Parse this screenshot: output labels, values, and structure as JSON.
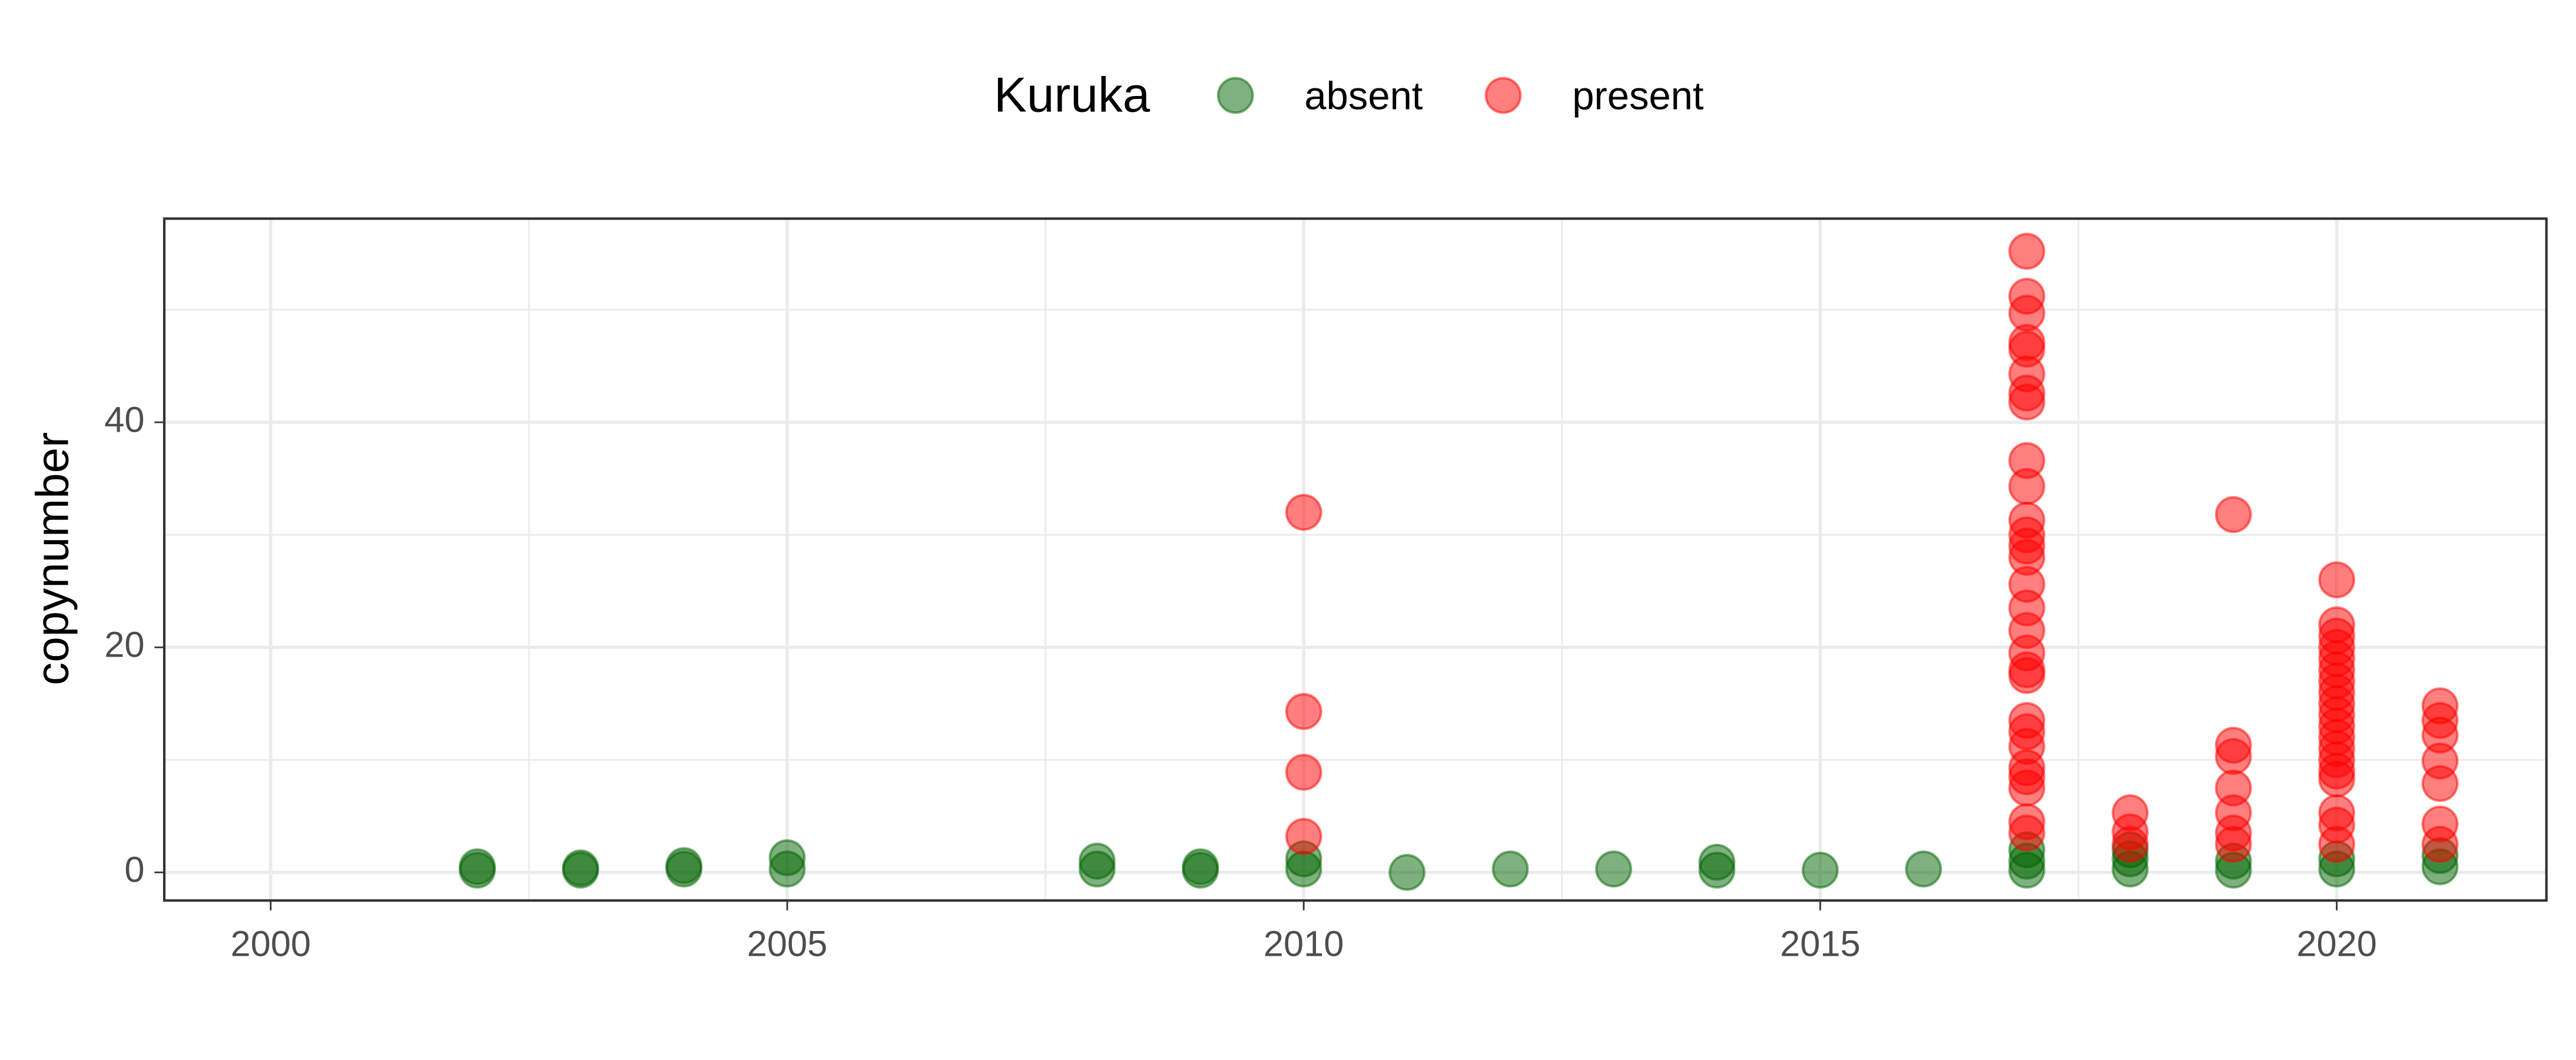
{
  "chart_data": {
    "type": "scatter",
    "ylabel": "copynumber",
    "legend_title": "Kuruka",
    "legend_position": "top",
    "grid": true,
    "minor_grid": true,
    "xlim": [
      1998.97,
      2022.03
    ],
    "xticks": [
      2000,
      2005,
      2010,
      2015,
      2020
    ],
    "ylim": [
      -2.5,
      58.1
    ],
    "yticks": [
      0,
      20,
      40
    ],
    "series": [
      {
        "name": "absent",
        "color": "#006400",
        "x": [
          2002,
          2002,
          2003,
          2003,
          2004,
          2004,
          2005,
          2005,
          2008,
          2008,
          2009,
          2009,
          2010,
          2010,
          2011,
          2012,
          2013,
          2014,
          2014,
          2015,
          2016,
          2017,
          2017,
          2017,
          2018,
          2018,
          2018,
          2019,
          2019,
          2020,
          2020,
          2021,
          2021
        ],
        "values": [
          0.2,
          0.5,
          0.2,
          0.4,
          0.3,
          0.6,
          0.3,
          1.3,
          0.3,
          1.0,
          0.2,
          0.5,
          0.3,
          1.2,
          0,
          0.3,
          0.3,
          0.2,
          0.9,
          0.2,
          0.3,
          0.2,
          1,
          2,
          0.3,
          1.2,
          2,
          0.2,
          1,
          0.3,
          1.2,
          0.5,
          1.5
        ]
      },
      {
        "name": "present",
        "color": "#ff0000",
        "x": [
          2010,
          2010,
          2010,
          2010,
          2017,
          2017,
          2017,
          2017,
          2017,
          2017,
          2017,
          2017,
          2017,
          2017,
          2017,
          2017,
          2017,
          2017,
          2017,
          2017,
          2017,
          2017,
          2017,
          2017,
          2017,
          2017,
          2017,
          2017,
          2017,
          2017,
          2017,
          2017,
          2018,
          2018,
          2018,
          2019,
          2019,
          2019,
          2019,
          2019,
          2019,
          2019,
          2020,
          2020,
          2020,
          2020,
          2020,
          2020,
          2020,
          2020,
          2020,
          2020,
          2020,
          2020,
          2020,
          2020,
          2020,
          2020,
          2020,
          2020,
          2020,
          2021,
          2021,
          2021,
          2021,
          2021,
          2021,
          2021
        ],
        "values": [
          32,
          14.3,
          8.9,
          3.2,
          55.2,
          51.2,
          49.7,
          47.1,
          46.5,
          44.3,
          42.6,
          41.8,
          36.6,
          34.3,
          31.3,
          30,
          29,
          28,
          25.6,
          23.5,
          21.5,
          19.5,
          18,
          17.5,
          13.5,
          12.5,
          11.2,
          9.3,
          8.5,
          7.5,
          4.5,
          3.5,
          5.3,
          3.6,
          2.5,
          31.8,
          11.3,
          10.3,
          7.5,
          5.3,
          3.5,
          2.5,
          26,
          22,
          21,
          20,
          19,
          18,
          17,
          16,
          15,
          14,
          13,
          12,
          11,
          10,
          9,
          8.3,
          5.3,
          4.2,
          2.5,
          14.8,
          13.5,
          12.2,
          9.9,
          7.9,
          4.3,
          2.5
        ]
      }
    ]
  }
}
